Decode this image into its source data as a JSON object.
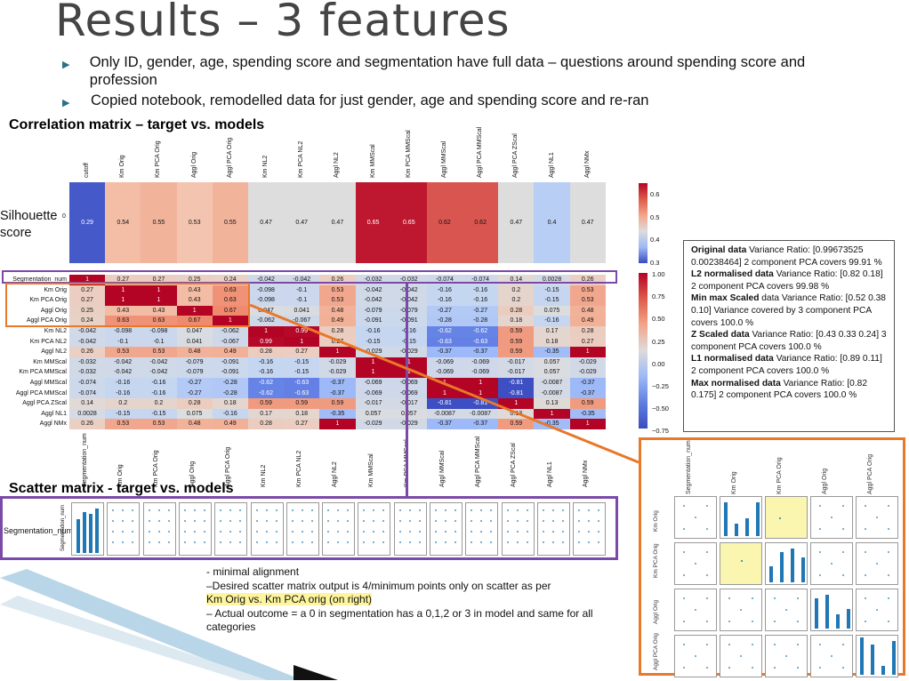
{
  "slide": {
    "title": "Results – 3 features",
    "bullets": [
      "Only ID, gender, age, spending score and segmentation have full data – questions around spending score and profession",
      "Copied notebook, remodelled data for just gender, age and spending score and re-ran"
    ],
    "correlation_heading": "Correlation matrix – target vs. models",
    "scatter_heading": "Scatter matrix  - target vs. models",
    "silhouette_label": "Silhouette score",
    "colors": {
      "accent_orange": "#e8782a",
      "accent_purple": "#7b4aa8",
      "highlight": "#fff59d",
      "bullet": "#2c6e8a",
      "heat_high": "#b40426",
      "heat_low": "#3b4cc0"
    }
  },
  "silhouette": {
    "y_tick": "0",
    "columns": [
      "cutoff",
      "Km Orig",
      "Km PCA Orig",
      "Aggl Orig",
      "Aggl PCA Orig",
      "Km NL2",
      "Km PCA NL2",
      "Aggl NL2",
      "Km MMScal",
      "Km PCA MMScal",
      "Aggl MMScal",
      "Aggl PCA MMScal",
      "Aggl PCA ZScal",
      "Aggl NL1",
      "Aggl NMx"
    ],
    "values": [
      "0.29",
      "0.54",
      "0.55",
      "0.53",
      "0.55",
      "0.47",
      "0.47",
      "0.47",
      "0.65",
      "0.65",
      "0.62",
      "0.62",
      "0.47",
      "0.4",
      "0.47"
    ],
    "colorbar_ticks": [
      "0.6",
      "0.5",
      "0.4",
      "0.3"
    ]
  },
  "correlation": {
    "rows": [
      "Segmentation_num",
      "Km Orig",
      "Km PCA Orig",
      "Aggl Orig",
      "Aggl PCA Orig",
      "Km NL2",
      "Km PCA NL2",
      "Aggl NL2",
      "Km MMScal",
      "Km PCA MMScal",
      "Aggl MMScal",
      "Aggl PCA MMScal",
      "Aggl PCA ZScal",
      "Aggl NL1",
      "Aggl NMx"
    ],
    "columns": [
      "Segmentation_num",
      "Km Orig",
      "Km PCA Orig",
      "Aggl Orig",
      "Aggl PCA Orig",
      "Km NL2",
      "Km PCA NL2",
      "Aggl NL2",
      "Km MMScal",
      "Km PCA MMScal",
      "Aggl MMScal",
      "Aggl PCA MMScal",
      "Aggl PCA ZScal",
      "Aggl NL1",
      "Aggl NMx"
    ],
    "values": [
      [
        "1",
        "0.27",
        "0.27",
        "0.25",
        "0.24",
        "-0.042",
        "-0.042",
        "0.26",
        "-0.032",
        "-0.032",
        "-0.074",
        "-0.074",
        "0.14",
        "0.0028",
        "0.26"
      ],
      [
        "0.27",
        "1",
        "1",
        "0.43",
        "0.63",
        "-0.098",
        "-0.1",
        "0.53",
        "-0.042",
        "-0.042",
        "-0.16",
        "-0.16",
        "0.2",
        "-0.15",
        "0.53"
      ],
      [
        "0.27",
        "1",
        "1",
        "0.43",
        "0.63",
        "-0.098",
        "-0.1",
        "0.53",
        "-0.042",
        "-0.042",
        "-0.16",
        "-0.16",
        "0.2",
        "-0.15",
        "0.53"
      ],
      [
        "0.25",
        "0.43",
        "0.43",
        "1",
        "0.67",
        "0.047",
        "0.041",
        "0.48",
        "-0.079",
        "-0.079",
        "-0.27",
        "-0.27",
        "0.28",
        "0.075",
        "0.48"
      ],
      [
        "0.24",
        "0.63",
        "0.63",
        "0.67",
        "1",
        "-0.062",
        "-0.067",
        "0.49",
        "-0.091",
        "-0.091",
        "-0.28",
        "-0.28",
        "0.18",
        "-0.16",
        "0.49"
      ],
      [
        "-0.042",
        "-0.098",
        "-0.098",
        "0.047",
        "-0.062",
        "1",
        "0.99",
        "0.28",
        "-0.16",
        "-0.16",
        "-0.62",
        "-0.62",
        "0.59",
        "0.17",
        "0.28"
      ],
      [
        "-0.042",
        "-0.1",
        "-0.1",
        "0.041",
        "-0.067",
        "0.99",
        "1",
        "0.27",
        "-0.15",
        "-0.15",
        "-0.63",
        "-0.63",
        "0.59",
        "0.18",
        "0.27"
      ],
      [
        "0.26",
        "0.53",
        "0.53",
        "0.48",
        "0.49",
        "0.28",
        "0.27",
        "1",
        "-0.029",
        "-0.029",
        "-0.37",
        "-0.37",
        "0.59",
        "-0.35",
        "1"
      ],
      [
        "-0.032",
        "-0.042",
        "-0.042",
        "-0.079",
        "-0.091",
        "-0.16",
        "-0.15",
        "-0.029",
        "1",
        "1",
        "-0.069",
        "-0.069",
        "-0.017",
        "0.057",
        "-0.029"
      ],
      [
        "-0.032",
        "-0.042",
        "-0.042",
        "-0.079",
        "-0.091",
        "-0.16",
        "-0.15",
        "-0.029",
        "1",
        "1",
        "-0.069",
        "-0.069",
        "-0.017",
        "0.057",
        "-0.029"
      ],
      [
        "-0.074",
        "-0.16",
        "-0.16",
        "-0.27",
        "-0.28",
        "-0.62",
        "-0.63",
        "-0.37",
        "-0.069",
        "-0.069",
        "1",
        "1",
        "-0.81",
        "-0.0087",
        "-0.37"
      ],
      [
        "-0.074",
        "-0.16",
        "-0.16",
        "-0.27",
        "-0.28",
        "-0.62",
        "-0.63",
        "-0.37",
        "-0.069",
        "-0.069",
        "1",
        "1",
        "-0.81",
        "-0.0087",
        "-0.37"
      ],
      [
        "0.14",
        "0.2",
        "0.2",
        "0.28",
        "0.18",
        "0.59",
        "0.59",
        "0.59",
        "-0.017",
        "-0.017",
        "-0.81",
        "-0.81",
        "1",
        "0.13",
        "0.59"
      ],
      [
        "0.0028",
        "-0.15",
        "-0.15",
        "0.075",
        "-0.16",
        "0.17",
        "0.18",
        "-0.35",
        "0.057",
        "0.057",
        "-0.0087",
        "-0.0087",
        "0.13",
        "1",
        "-0.35"
      ],
      [
        "0.26",
        "0.53",
        "0.53",
        "0.48",
        "0.49",
        "0.28",
        "0.27",
        "1",
        "-0.029",
        "-0.029",
        "-0.37",
        "-0.37",
        "0.59",
        "-0.35",
        "1"
      ]
    ],
    "colorbar_ticks": [
      "1.00",
      "0.75",
      "0.50",
      "0.25",
      "0.00",
      "−0.25",
      "−0.50",
      "−0.75"
    ]
  },
  "info_box": [
    {
      "bold": "Original data",
      "text": " Variance Ratio: [0.99673525 0.00238464] 2 component PCA covers 99.91 %"
    },
    {
      "bold": "L2 normalised data",
      "text": " Variance Ratio: [0.82 0.18] 2 component PCA covers 99.98 %"
    },
    {
      "bold": "Min max Scaled",
      "text": " data Variance Ratio: [0.52 0.38 0.10] Variance covered by 3 component PCA covers 100.0 %"
    },
    {
      "bold": "Z Scaled data",
      "text": " Variance Ratio: [0.43 0.33 0.24] 3 component PCA covers 100.0 %"
    },
    {
      "bold": "L1 normalised data",
      "text": " Variance Ratio: [0.89 0.11] 2 component PCA covers 100.0 %"
    },
    {
      "bold": "Max normalised data",
      "text": " Variance Ratio: [0.82 0.175] 2 component PCA covers 100.0 %"
    }
  ],
  "scatter_row": {
    "row_label": "Segmentation_num",
    "axis_label": "Segmentation_num"
  },
  "notes": {
    "line1": "- minimal alignment",
    "line2": "–Desired scatter matrix output is 4/minimum points only on scatter as per",
    "line3": "Km Orig vs. Km PCA orig (on right)",
    "line4": "– Actual outcome = a 0 in segmentation has a 0,1,2 or 3 in model and same for all categories"
  },
  "right_matrix": {
    "columns": [
      "Segmentation_num",
      "Km Orig",
      "Km PCA Orig",
      "Aggl Orig",
      "Aggl PCA Orig"
    ],
    "rows": [
      "Km Orig",
      "Km PCA Orig",
      "Aggl Orig",
      "Aggl PCA Orig"
    ]
  }
}
